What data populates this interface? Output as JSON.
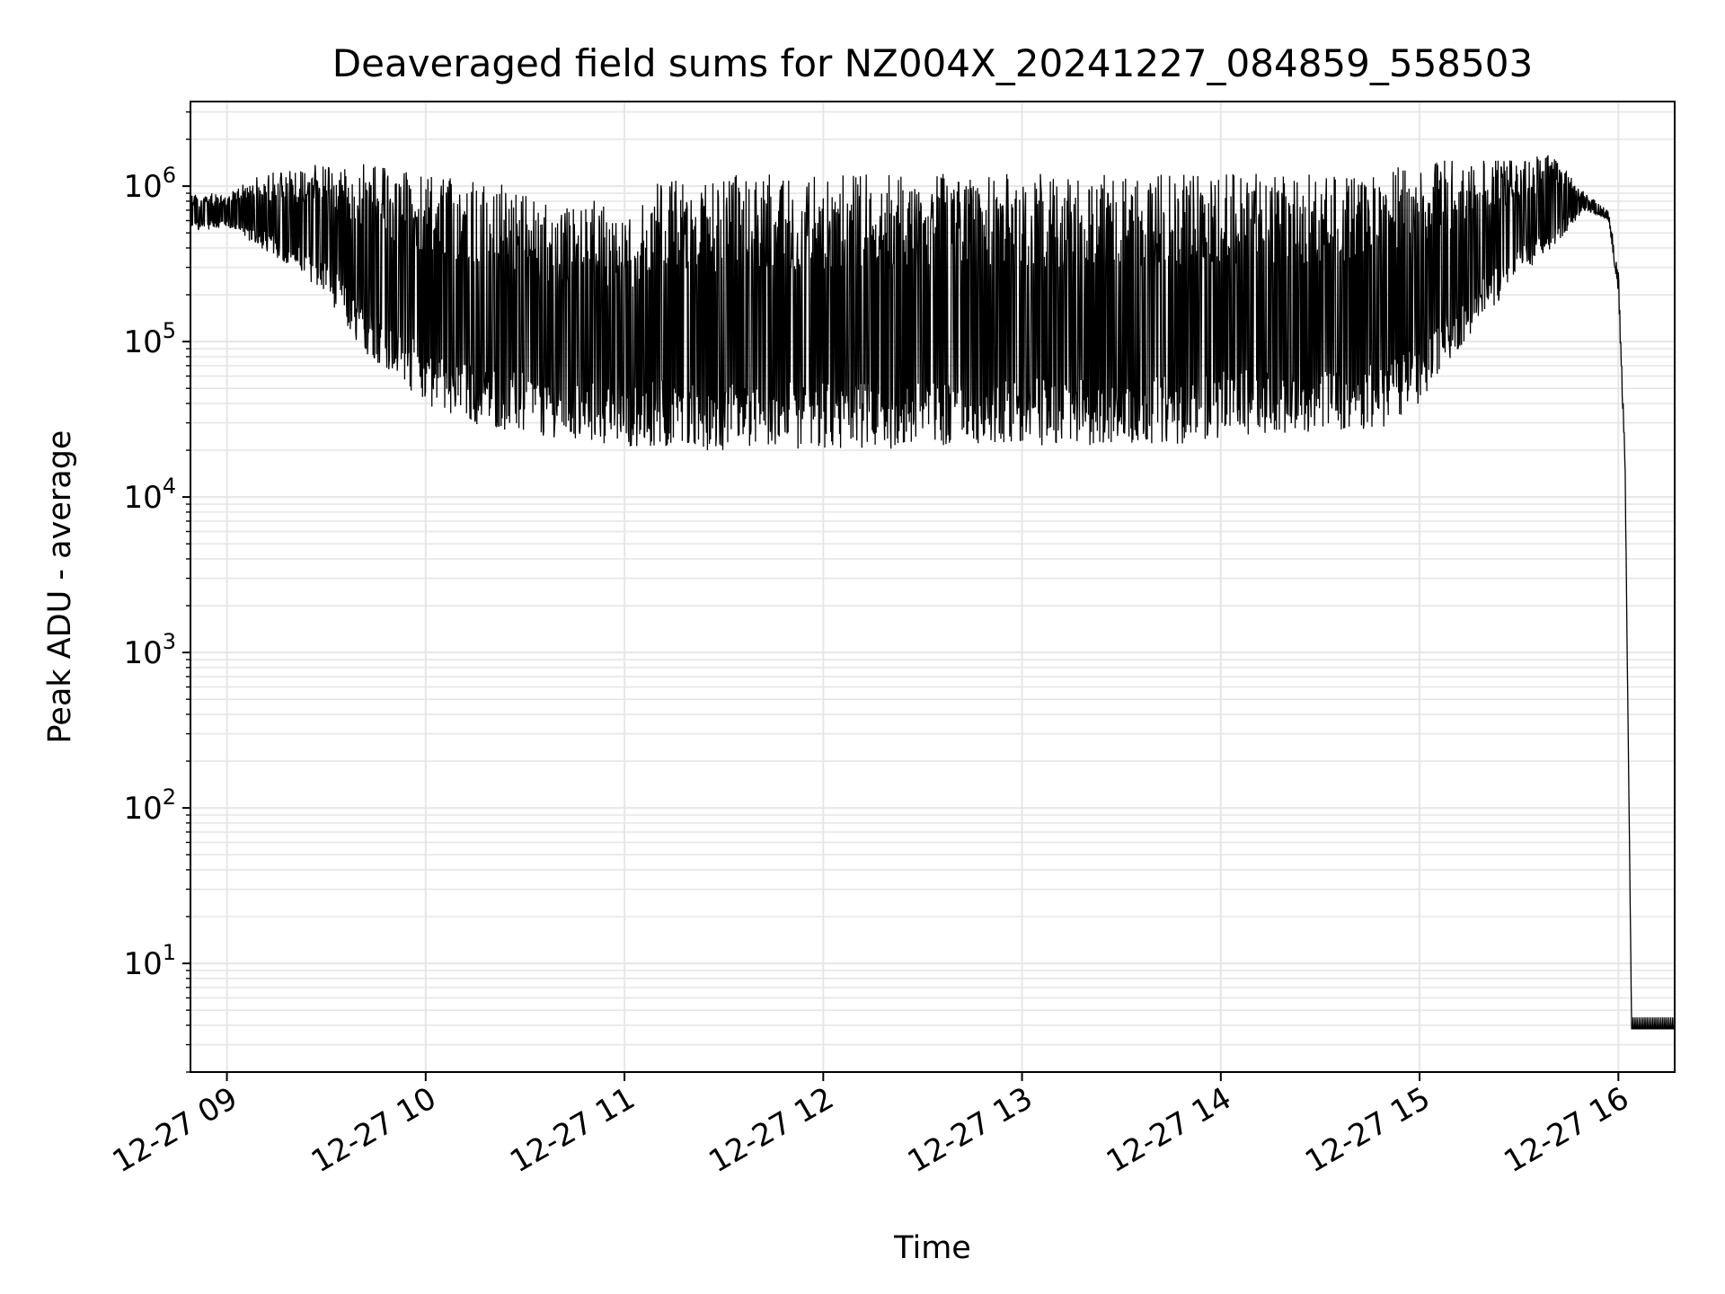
{
  "chart_data": {
    "type": "line",
    "title": "Deaveraged field sums for NZ004X_20241227_084859_558503",
    "xlabel": "Time",
    "ylabel": "Peak ADU - average",
    "yscale": "log",
    "grid": true,
    "line_color": "#000000",
    "grid_color": "#e6e6e6",
    "xlim": [
      "2024-12-27 08:49",
      "2024-12-27 16:17"
    ],
    "ylim": [
      2,
      3500000
    ],
    "x_ticks": [
      "12-27 09",
      "12-27 10",
      "12-27 11",
      "12-27 12",
      "12-27 13",
      "12-27 14",
      "12-27 15",
      "12-27 16"
    ],
    "x_tick_times": [
      "2024-12-27 09:00",
      "2024-12-27 10:00",
      "2024-12-27 11:00",
      "2024-12-27 12:00",
      "2024-12-27 13:00",
      "2024-12-27 14:00",
      "2024-12-27 15:00",
      "2024-12-27 16:00"
    ],
    "y_ticks": [
      {
        "base": "10",
        "exp": "1",
        "value": 10
      },
      {
        "base": "10",
        "exp": "2",
        "value": 100
      },
      {
        "base": "10",
        "exp": "3",
        "value": 1000
      },
      {
        "base": "10",
        "exp": "4",
        "value": 10000
      },
      {
        "base": "10",
        "exp": "5",
        "value": 100000
      },
      {
        "base": "10",
        "exp": "6",
        "value": 1000000
      }
    ],
    "series": [
      {
        "upper_envelope": {
          "x": [
            "2024-12-27 08:49",
            "2024-12-27 09:00",
            "2024-12-27 09:10",
            "2024-12-27 09:20",
            "2024-12-27 09:30",
            "2024-12-27 09:40",
            "2024-12-27 09:50",
            "2024-12-27 10:00",
            "2024-12-27 10:10",
            "2024-12-27 10:20",
            "2024-12-27 10:30",
            "2024-12-27 10:40",
            "2024-12-27 10:50",
            "2024-12-27 11:00",
            "2024-12-27 11:10",
            "2024-12-27 11:20",
            "2024-12-27 11:30",
            "2024-12-27 11:40",
            "2024-12-27 11:50",
            "2024-12-27 12:00",
            "2024-12-27 12:10",
            "2024-12-27 12:20",
            "2024-12-27 12:30",
            "2024-12-27 12:40",
            "2024-12-27 12:50",
            "2024-12-27 13:00",
            "2024-12-27 13:10",
            "2024-12-27 13:20",
            "2024-12-27 13:30",
            "2024-12-27 13:40",
            "2024-12-27 13:50",
            "2024-12-27 14:00",
            "2024-12-27 14:10",
            "2024-12-27 14:20",
            "2024-12-27 14:30",
            "2024-12-27 14:40",
            "2024-12-27 14:50",
            "2024-12-27 15:00",
            "2024-12-27 15:10",
            "2024-12-27 15:20",
            "2024-12-27 15:30",
            "2024-12-27 15:40",
            "2024-12-27 15:50",
            "2024-12-27 15:57",
            "2024-12-27 16:00",
            "2024-12-27 16:02",
            "2024-12-27 16:04",
            "2024-12-27 16:17"
          ],
          "y": [
            900000,
            900000,
            1200000,
            1300000,
            1500000,
            1400000,
            1300000,
            1200000,
            1100000,
            1100000,
            1000000,
            800000,
            900000,
            600000,
            1200000,
            1000000,
            1200000,
            1200000,
            1200000,
            1200000,
            1200000,
            1200000,
            1200000,
            1200000,
            1200000,
            1200000,
            1200000,
            1200000,
            1200000,
            1200000,
            1200000,
            1200000,
            1200000,
            1200000,
            1200000,
            1200000,
            1300000,
            1400000,
            1500000,
            1500000,
            1500000,
            1600000,
            900000,
            700000,
            300000,
            20000,
            4,
            4
          ]
        },
        "lower_envelope": {
          "x": [
            "2024-12-27 08:49",
            "2024-12-27 09:00",
            "2024-12-27 09:10",
            "2024-12-27 09:20",
            "2024-12-27 09:30",
            "2024-12-27 09:40",
            "2024-12-27 09:50",
            "2024-12-27 10:00",
            "2024-12-27 10:10",
            "2024-12-27 10:20",
            "2024-12-27 10:30",
            "2024-12-27 10:40",
            "2024-12-27 10:50",
            "2024-12-27 11:00",
            "2024-12-27 11:10",
            "2024-12-27 11:20",
            "2024-12-27 11:30",
            "2024-12-27 11:40",
            "2024-12-27 11:50",
            "2024-12-27 12:00",
            "2024-12-27 12:10",
            "2024-12-27 12:20",
            "2024-12-27 12:30",
            "2024-12-27 12:40",
            "2024-12-27 12:50",
            "2024-12-27 13:00",
            "2024-12-27 13:10",
            "2024-12-27 13:20",
            "2024-12-27 13:30",
            "2024-12-27 13:40",
            "2024-12-27 13:50",
            "2024-12-27 14:00",
            "2024-12-27 14:10",
            "2024-12-27 14:20",
            "2024-12-27 14:30",
            "2024-12-27 14:40",
            "2024-12-27 14:50",
            "2024-12-27 15:00",
            "2024-12-27 15:10",
            "2024-12-27 15:20",
            "2024-12-27 15:30",
            "2024-12-27 15:40",
            "2024-12-27 15:50",
            "2024-12-27 15:57",
            "2024-12-27 16:00",
            "2024-12-27 16:02",
            "2024-12-27 16:04",
            "2024-12-27 16:17"
          ],
          "y": [
            500000,
            550000,
            400000,
            300000,
            200000,
            90000,
            60000,
            40000,
            30000,
            28000,
            25000,
            24000,
            22000,
            21000,
            21000,
            20000,
            20000,
            20000,
            20000,
            20000,
            20000,
            20000,
            21000,
            21000,
            21000,
            21000,
            21000,
            21000,
            22000,
            22000,
            22000,
            24000,
            25000,
            25000,
            26000,
            27000,
            28000,
            40000,
            80000,
            150000,
            250000,
            400000,
            700000,
            600000,
            200000,
            15000,
            4,
            4
          ]
        }
      }
    ]
  }
}
